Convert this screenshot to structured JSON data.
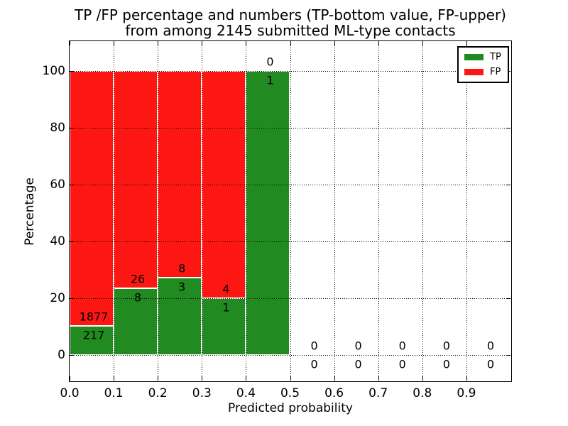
{
  "figure": {
    "title_line1": "TP /FP percentage and numbers (TP-bottom value, FP-upper)",
    "title_line2": "from among 2145 submitted ML-type contacts",
    "xlabel": "Predicted probability",
    "ylabel": "Percentage"
  },
  "colors": {
    "tp": "#218a21",
    "fp": "#fc1712",
    "grid": "#000000",
    "text": "#000000",
    "background": "#ffffff"
  },
  "chart_data": {
    "type": "bar",
    "stacked": true,
    "title": "TP /FP percentage and numbers (TP-bottom value, FP-upper) from among 2145 submitted ML-type contacts",
    "xlabel": "Predicted probability",
    "ylabel": "Percentage",
    "total_contacts": 2145,
    "xlim": [
      0.0,
      1.0
    ],
    "ylim": [
      -9,
      110.5
    ],
    "x_ticks": [
      "0.0",
      "0.1",
      "0.2",
      "0.3",
      "0.4",
      "0.5",
      "0.6",
      "0.7",
      "0.8",
      "0.9"
    ],
    "y_ticks": [
      "0",
      "20",
      "40",
      "60",
      "80",
      "100"
    ],
    "grid": "dotted",
    "annotation_scheme": "TP count printed below the TP/FP boundary, FP count printed above it",
    "legend": {
      "position": "upper right",
      "entries": [
        {
          "label": "TP",
          "color": "#218a21"
        },
        {
          "label": "FP",
          "color": "#fc1712"
        }
      ]
    },
    "bins": [
      {
        "range": [
          0.0,
          0.1
        ],
        "tp": 217,
        "fp": 1877,
        "tp_pct": 10.36,
        "fp_pct": 89.64
      },
      {
        "range": [
          0.1,
          0.2
        ],
        "tp": 8,
        "fp": 26,
        "tp_pct": 23.53,
        "fp_pct": 76.47
      },
      {
        "range": [
          0.2,
          0.3
        ],
        "tp": 3,
        "fp": 8,
        "tp_pct": 27.27,
        "fp_pct": 72.73
      },
      {
        "range": [
          0.3,
          0.4
        ],
        "tp": 1,
        "fp": 4,
        "tp_pct": 20.0,
        "fp_pct": 80.0
      },
      {
        "range": [
          0.4,
          0.5
        ],
        "tp": 1,
        "fp": 0,
        "tp_pct": 100.0,
        "fp_pct": 0.0
      },
      {
        "range": [
          0.5,
          0.6
        ],
        "tp": 0,
        "fp": 0,
        "tp_pct": null,
        "fp_pct": null
      },
      {
        "range": [
          0.6,
          0.7
        ],
        "tp": 0,
        "fp": 0,
        "tp_pct": null,
        "fp_pct": null
      },
      {
        "range": [
          0.7,
          0.8
        ],
        "tp": 0,
        "fp": 0,
        "tp_pct": null,
        "fp_pct": null
      },
      {
        "range": [
          0.8,
          0.9
        ],
        "tp": 0,
        "fp": 0,
        "tp_pct": null,
        "fp_pct": null
      },
      {
        "range": [
          0.9,
          1.0
        ],
        "tp": 0,
        "fp": 0,
        "tp_pct": null,
        "fp_pct": null
      }
    ]
  }
}
